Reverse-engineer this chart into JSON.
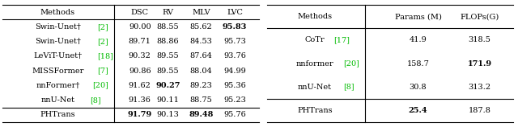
{
  "table1": {
    "headers": [
      "Methods",
      "DSC",
      "RV",
      "MLV",
      "LVC"
    ],
    "rows": [
      {
        "method": "Swin-Unet",
        "sup": "†",
        "ref": "2",
        "dsc": "90.00",
        "rv": "88.55",
        "mlv": "85.62",
        "lvc": "95.83",
        "bold_cols": [
          "lvc"
        ]
      },
      {
        "method": "Swin-Unet",
        "sup": "†",
        "ref": "2",
        "dsc": "89.71",
        "rv": "88.86",
        "mlv": "84.53",
        "lvc": "95.73",
        "bold_cols": []
      },
      {
        "method": "LeViT-Unet",
        "sup": "†",
        "ref": "18",
        "dsc": "90.32",
        "rv": "89.55",
        "mlv": "87.64",
        "lvc": "93.76",
        "bold_cols": []
      },
      {
        "method": "MISSFormer",
        "sup": "",
        "ref": "7",
        "dsc": "90.86",
        "rv": "89.55",
        "mlv": "88.04",
        "lvc": "94.99",
        "bold_cols": []
      },
      {
        "method": "nnFormer",
        "sup": "†",
        "ref": "20",
        "dsc": "91.62",
        "rv": "90.27",
        "mlv": "89.23",
        "lvc": "95.36",
        "bold_cols": [
          "rv"
        ]
      },
      {
        "method": "nnU-Net",
        "sup": "",
        "ref": "8",
        "dsc": "91.36",
        "rv": "90.11",
        "mlv": "88.75",
        "lvc": "95.23",
        "bold_cols": []
      },
      {
        "method": "PHTrans",
        "sup": "",
        "ref": "",
        "dsc": "91.79",
        "rv": "90.13",
        "mlv": "89.48",
        "lvc": "95.76",
        "bold_cols": [
          "dsc",
          "mlv"
        ]
      }
    ]
  },
  "table2": {
    "headers": [
      "Methods",
      "Params (M)",
      "FLOPs(G)"
    ],
    "rows": [
      {
        "method": "CoTr",
        "ref": "17",
        "params": "41.9",
        "flops": "318.5",
        "bold_cols": []
      },
      {
        "method": "nnformer",
        "ref": "20",
        "params": "158.7",
        "flops": "171.9",
        "bold_cols": [
          "flops"
        ]
      },
      {
        "method": "nnU-Net",
        "ref": "8",
        "params": "30.8",
        "flops": "313.2",
        "bold_cols": []
      },
      {
        "method": "PHTrans",
        "ref": "",
        "params": "25.4",
        "flops": "187.8",
        "bold_cols": [
          "params"
        ]
      }
    ]
  },
  "font_size": 7.0,
  "bg_color": "#ffffff",
  "ref_color": "#00bb00"
}
